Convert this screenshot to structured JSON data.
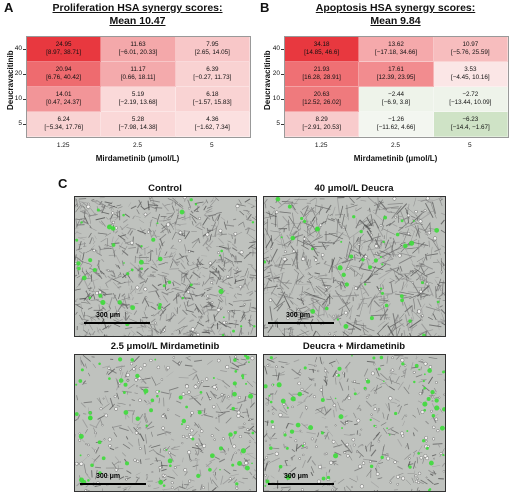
{
  "panel_a": {
    "letter": "A",
    "title_line1": "Proliferation HSA synergy scores:",
    "title_line2": "Mean 10.47",
    "ylabel": "Deucravacitinib",
    "xlabel": "Mirdametinib (μmol/L)",
    "y_ticks": [
      "40",
      "20",
      "10",
      "5"
    ],
    "x_ticks": [
      "1.25",
      "2.5",
      "5"
    ],
    "rows": [
      [
        {
          "value": "24.95",
          "ci": "[8.97, 38.71]",
          "color": "#e8383f"
        },
        {
          "value": "11.63",
          "ci": "[−6.01, 20.33]",
          "color": "#f4a8aa"
        },
        {
          "value": "7.95",
          "ci": "[2.65, 14.05]",
          "color": "#f8c7c8"
        }
      ],
      [
        {
          "value": "20.94",
          "ci": "[6.76, 40.42]",
          "color": "#ee6b6f"
        },
        {
          "value": "11.17",
          "ci": "[0.66, 18.11]",
          "color": "#f4aaac"
        },
        {
          "value": "6.39",
          "ci": "[−0.27, 11.73]",
          "color": "#f9d2d2"
        }
      ],
      [
        {
          "value": "14.01",
          "ci": "[0.47, 24.37]",
          "color": "#f29598"
        },
        {
          "value": "5.19",
          "ci": "[−2.19, 13.68]",
          "color": "#fad9d9"
        },
        {
          "value": "6.18",
          "ci": "[−1.57, 15.83]",
          "color": "#f9d3d3"
        }
      ],
      [
        {
          "value": "6.24",
          "ci": "[−5.34, 17.76]",
          "color": "#f9d3d3"
        },
        {
          "value": "5.28",
          "ci": "[−7.98, 14.38]",
          "color": "#fad8d8"
        },
        {
          "value": "4.36",
          "ci": "[−1.62, 7.34]",
          "color": "#fbe0e0"
        }
      ]
    ]
  },
  "panel_b": {
    "letter": "B",
    "title_line1": "Apoptosis HSA synergy scores:",
    "title_line2": "Mean 9.84",
    "ylabel": "Deucravacitinib",
    "xlabel": "Mirdametinib (μmol/L)",
    "y_ticks": [
      "40",
      "20",
      "10",
      "5"
    ],
    "x_ticks": [
      "1.25",
      "2.5",
      "5"
    ],
    "rows": [
      [
        {
          "value": "34.18",
          "ci": "[14.85, 46.6]",
          "color": "#e8383f"
        },
        {
          "value": "13.62",
          "ci": "[−17.18, 34.66]",
          "color": "#f5a9ab"
        },
        {
          "value": "10.97",
          "ci": "[−5.76, 25.59]",
          "color": "#f7bdbe"
        }
      ],
      [
        {
          "value": "21.93",
          "ci": "[16.28, 28.91]",
          "color": "#ef7074"
        },
        {
          "value": "17.61",
          "ci": "[12.39, 23.95]",
          "color": "#f28c8f"
        },
        {
          "value": "3.53",
          "ci": "[−4.45, 10.16]",
          "color": "#fbe6e6"
        }
      ],
      [
        {
          "value": "20.63",
          "ci": "[12.52, 26.02]",
          "color": "#ef7a7d"
        },
        {
          "value": "−2.44",
          "ci": "[−6.9, 3.8]",
          "color": "#eef3ea"
        },
        {
          "value": "−2.72",
          "ci": "[−13.44, 10.09]",
          "color": "#eef3ea"
        }
      ],
      [
        {
          "value": "8.29",
          "ci": "[−2.91, 20.53]",
          "color": "#f8cbcc"
        },
        {
          "value": "−1.26",
          "ci": "[−11.62, 4.66]",
          "color": "#f3f6f0"
        },
        {
          "value": "−6.23",
          "ci": "[−14.4, −1.67]",
          "color": "#cfe3c6"
        }
      ]
    ]
  },
  "panel_c": {
    "letter": "C",
    "images": [
      {
        "title": "Control",
        "scale": "300 μm",
        "density": 0.9
      },
      {
        "title": "40 μmol/L Deucra",
        "scale": "300 μm",
        "density": 0.75
      },
      {
        "title": "2.5 μmol/L Mirdametinib",
        "scale": "300 μm",
        "density": 0.25
      },
      {
        "title": "Deucra + Mirdametinib",
        "scale": "300 μm",
        "density": 0.25
      }
    ]
  }
}
